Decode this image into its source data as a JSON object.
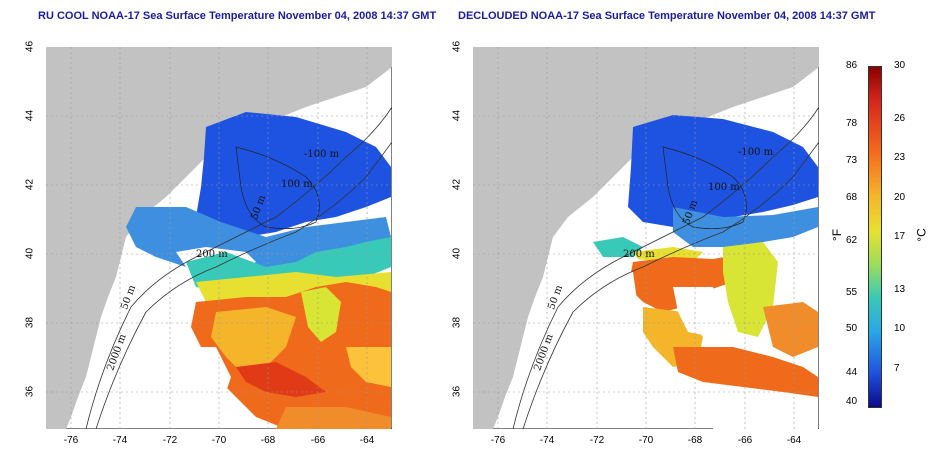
{
  "titles": {
    "left": "RU COOL NOAA-17 Sea Surface Temperature November 04, 2008 14:37 GMT",
    "right": "DECLOUDED NOAA-17 Sea Surface Temperature November 04, 2008 14:37 GMT"
  },
  "map_axes": {
    "lat_ticks": [
      "46",
      "44",
      "42",
      "40",
      "38",
      "36"
    ],
    "lon_ticks": [
      "-76",
      "-74",
      "-72",
      "-70",
      "-68",
      "-66",
      "-64"
    ],
    "lat_range": [
      35,
      46
    ],
    "lon_range": [
      -77,
      -63
    ],
    "grid": "dotted"
  },
  "contour_labels": {
    "left": [
      "-100 m",
      "100 m",
      "200 m",
      "50 m",
      "2000 m",
      "50 m"
    ],
    "right": [
      "-100 m",
      "100 m",
      "200 m",
      "50 m",
      "2000 m",
      "50 m"
    ]
  },
  "colorbar": {
    "celsius_ticks": [
      "30",
      "26",
      "23",
      "20",
      "17",
      "13",
      "10",
      "7"
    ],
    "fahrenheit_ticks": [
      "86",
      "78",
      "73",
      "68",
      "62",
      "55",
      "50",
      "44",
      "40"
    ],
    "unit_f": "°F",
    "unit_c": "°C",
    "range_c": [
      4,
      30
    ]
  },
  "colors": {
    "land": "#c2c2c2",
    "cold": "#1e52e0",
    "warm": "#f06a1c",
    "title": "#1a1aa6"
  }
}
